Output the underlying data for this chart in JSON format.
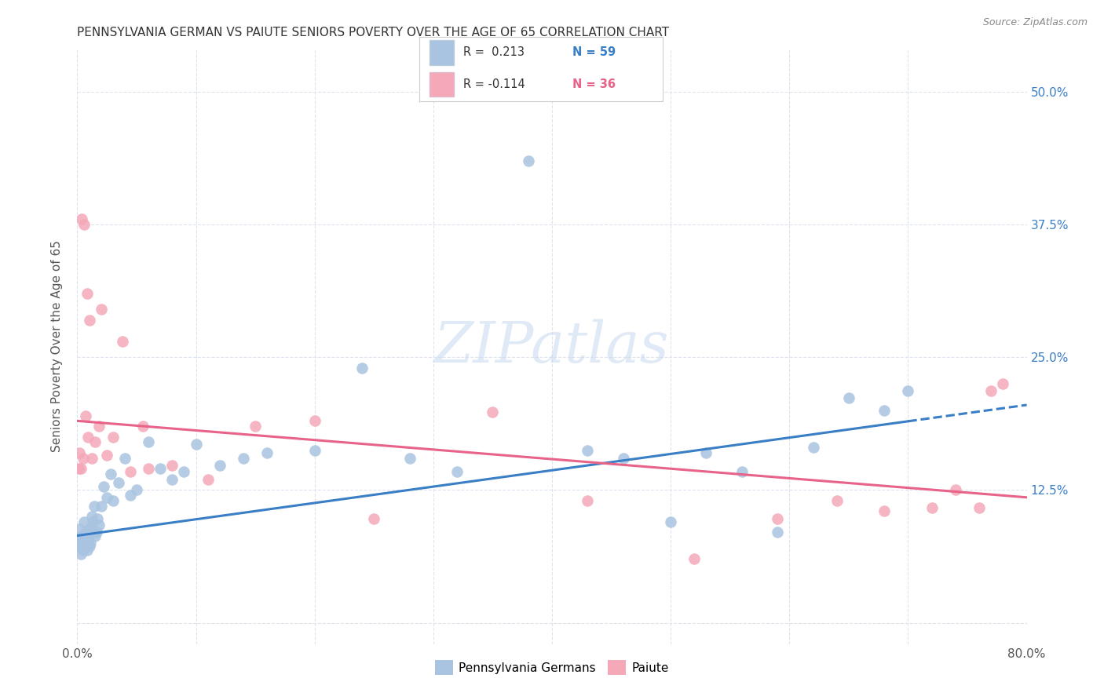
{
  "title": "PENNSYLVANIA GERMAN VS PAIUTE SENIORS POVERTY OVER THE AGE OF 65 CORRELATION CHART",
  "source": "Source: ZipAtlas.com",
  "ylabel": "Seniors Poverty Over the Age of 65",
  "xlim": [
    0,
    0.8
  ],
  "ylim": [
    -0.02,
    0.54
  ],
  "xticks": [
    0.0,
    0.1,
    0.2,
    0.3,
    0.4,
    0.5,
    0.6,
    0.7,
    0.8
  ],
  "xticklabels": [
    "0.0%",
    "",
    "",
    "",
    "",
    "",
    "",
    "",
    "80.0%"
  ],
  "yticks_right": [
    0.0,
    0.125,
    0.25,
    0.375,
    0.5
  ],
  "yticklabels_right": [
    "",
    "12.5%",
    "25.0%",
    "37.5%",
    "50.0%"
  ],
  "blue_color": "#a8c4e0",
  "pink_color": "#f4a8b8",
  "blue_line_color": "#3a7ec6",
  "pink_line_color": "#e8638a",
  "legend_label_blue": "Pennsylvania Germans",
  "legend_label_pink": "Paiute",
  "blue_scatter_x": [
    0.001,
    0.002,
    0.002,
    0.003,
    0.003,
    0.004,
    0.004,
    0.005,
    0.005,
    0.006,
    0.006,
    0.007,
    0.007,
    0.008,
    0.008,
    0.009,
    0.01,
    0.01,
    0.011,
    0.012,
    0.012,
    0.013,
    0.014,
    0.015,
    0.016,
    0.017,
    0.018,
    0.02,
    0.022,
    0.025,
    0.028,
    0.03,
    0.035,
    0.04,
    0.045,
    0.05,
    0.06,
    0.07,
    0.08,
    0.09,
    0.1,
    0.12,
    0.14,
    0.16,
    0.2,
    0.24,
    0.28,
    0.32,
    0.38,
    0.43,
    0.46,
    0.5,
    0.53,
    0.56,
    0.59,
    0.62,
    0.65,
    0.68,
    0.7
  ],
  "blue_scatter_y": [
    0.08,
    0.072,
    0.088,
    0.075,
    0.065,
    0.07,
    0.082,
    0.068,
    0.078,
    0.072,
    0.095,
    0.078,
    0.085,
    0.068,
    0.075,
    0.08,
    0.072,
    0.088,
    0.075,
    0.09,
    0.1,
    0.095,
    0.11,
    0.082,
    0.085,
    0.098,
    0.092,
    0.11,
    0.128,
    0.118,
    0.14,
    0.115,
    0.132,
    0.155,
    0.12,
    0.125,
    0.17,
    0.145,
    0.135,
    0.142,
    0.168,
    0.148,
    0.155,
    0.16,
    0.162,
    0.24,
    0.155,
    0.142,
    0.435,
    0.162,
    0.155,
    0.095,
    0.16,
    0.142,
    0.085,
    0.165,
    0.212,
    0.2,
    0.218
  ],
  "pink_scatter_x": [
    0.001,
    0.002,
    0.003,
    0.004,
    0.005,
    0.006,
    0.007,
    0.008,
    0.009,
    0.01,
    0.012,
    0.015,
    0.018,
    0.02,
    0.025,
    0.03,
    0.038,
    0.045,
    0.055,
    0.06,
    0.08,
    0.11,
    0.15,
    0.2,
    0.25,
    0.35,
    0.43,
    0.52,
    0.59,
    0.64,
    0.68,
    0.72,
    0.74,
    0.76,
    0.77,
    0.78
  ],
  "pink_scatter_y": [
    0.145,
    0.16,
    0.145,
    0.38,
    0.155,
    0.375,
    0.195,
    0.31,
    0.175,
    0.285,
    0.155,
    0.17,
    0.185,
    0.295,
    0.158,
    0.175,
    0.265,
    0.142,
    0.185,
    0.145,
    0.148,
    0.135,
    0.185,
    0.19,
    0.098,
    0.198,
    0.115,
    0.06,
    0.098,
    0.115,
    0.105,
    0.108,
    0.125,
    0.108,
    0.218,
    0.225
  ],
  "watermark": "ZIPatlas",
  "background_color": "#ffffff",
  "grid_color": "#dde4ee"
}
